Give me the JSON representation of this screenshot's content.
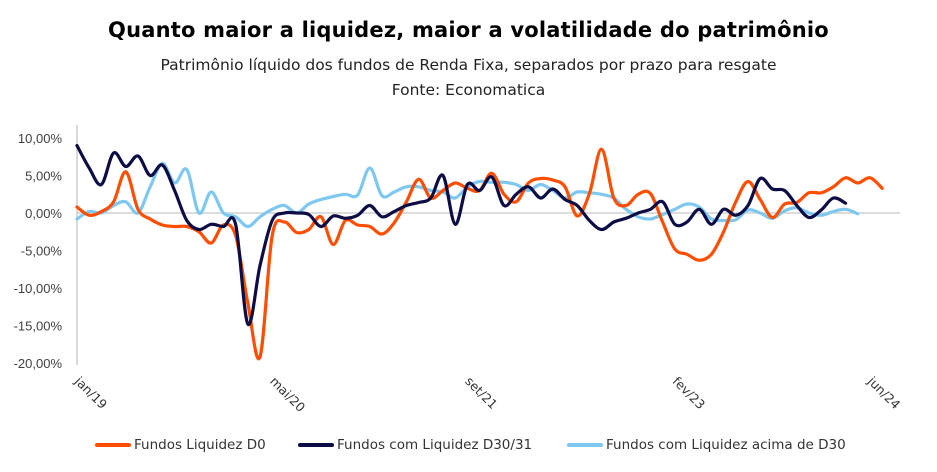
{
  "title": "Quanto maior a liquidez, maior a volatilidade do patrimônio",
  "subtitle": "Patrimônio líquido dos fundos de Renda Fixa, separados por prazo para resgate",
  "source": "Fonte: Economatica",
  "chart_data": {
    "type": "line",
    "title": "Quanto maior a liquidez, maior a volatilidade do patrimônio",
    "subtitle": "Patrimônio líquido dos fundos de Renda Fixa, separados por prazo para resgate",
    "xlabel": "",
    "ylabel": "",
    "ylim": [
      -20,
      10
    ],
    "yticks": [
      10,
      5,
      0,
      -5,
      -10,
      -15,
      -20
    ],
    "ytick_labels": [
      "10,00%",
      "5,00%",
      "0,00%",
      "-5,00%",
      "-10,00%",
      "-15,00%",
      "-20,00%"
    ],
    "x_start": "jan/19",
    "x_frequency": "monthly",
    "xtick_labels": [
      "jan/19",
      "mai/20",
      "set/21",
      "fev/23",
      "jun/24"
    ],
    "xtick_index": [
      0,
      16,
      32,
      49,
      65
    ],
    "grid": false,
    "legend_position": "bottom",
    "series": [
      {
        "name": "Fundos Liquidez D0",
        "color": "#FF4E00",
        "values": [
          0.8,
          -0.3,
          0.2,
          1.5,
          5.5,
          0.5,
          -0.8,
          -1.6,
          -1.8,
          -1.8,
          -2.5,
          -4.0,
          -1.6,
          -3.0,
          -12.0,
          -19.2,
          -3.0,
          -1.2,
          -2.6,
          -2.2,
          -0.5,
          -4.2,
          -1.0,
          -1.6,
          -1.8,
          -2.8,
          -1.3,
          1.5,
          4.5,
          2.0,
          3.0,
          4.0,
          3.3,
          3.0,
          5.3,
          2.5,
          1.5,
          4.0,
          4.6,
          4.4,
          3.5,
          -0.4,
          2.6,
          8.5,
          2.0,
          1.0,
          2.5,
          2.6,
          -1.2,
          -4.8,
          -5.5,
          -6.3,
          -5.5,
          -2.5,
          1.5,
          4.2,
          1.8,
          -0.6,
          1.2,
          1.4,
          2.7,
          2.7,
          3.5,
          4.7,
          4.0,
          4.7,
          3.3
        ]
      },
      {
        "name": "Fundos com Liquidez D30/31",
        "color": "#0D0D45",
        "values": [
          9.0,
          6.0,
          3.8,
          8.0,
          6.2,
          7.6,
          5.0,
          6.4,
          3.0,
          -1.0,
          -2.2,
          -1.5,
          -1.8,
          -1.5,
          -14.8,
          -7.0,
          -1.0,
          0.0,
          0.0,
          -0.2,
          -1.8,
          -0.4,
          -0.7,
          -0.3,
          1.0,
          -0.5,
          0.2,
          1.0,
          1.4,
          2.0,
          5.0,
          -1.5,
          3.8,
          3.0,
          4.8,
          1.0,
          2.5,
          3.5,
          2.0,
          3.2,
          1.8,
          1.0,
          -1.0,
          -2.2,
          -1.2,
          -0.7,
          0.0,
          0.5,
          1.5,
          -1.5,
          -1.2,
          0.5,
          -1.5,
          0.5,
          -0.3,
          1.0,
          4.6,
          3.2,
          3.0,
          1.0,
          -0.6,
          0.4,
          2.0,
          1.3
        ]
      },
      {
        "name": "Fundos com Liquidez acima de D30",
        "color": "#7EC8F0",
        "values": [
          -0.8,
          0.2,
          0.0,
          1.0,
          1.5,
          0.0,
          3.5,
          6.6,
          4.0,
          5.8,
          0.0,
          2.8,
          0.0,
          -0.5,
          -1.8,
          -0.5,
          0.5,
          1.0,
          0.0,
          1.2,
          1.8,
          2.2,
          2.5,
          2.4,
          6.0,
          2.3,
          2.8,
          3.5,
          3.5,
          3.0,
          2.8,
          2.0,
          3.5,
          4.2,
          4.1,
          4.1,
          3.8,
          3.0,
          3.8,
          3.0,
          2.0,
          2.8,
          2.7,
          2.5,
          2.0,
          0.5,
          -0.5,
          -0.8,
          -0.2,
          0.5,
          1.2,
          0.8,
          -0.8,
          -1.0,
          -0.9,
          0.4,
          0.0,
          -0.7,
          0.3,
          0.7,
          0.0,
          -0.3,
          0.2,
          0.5,
          -0.1
        ]
      }
    ]
  }
}
